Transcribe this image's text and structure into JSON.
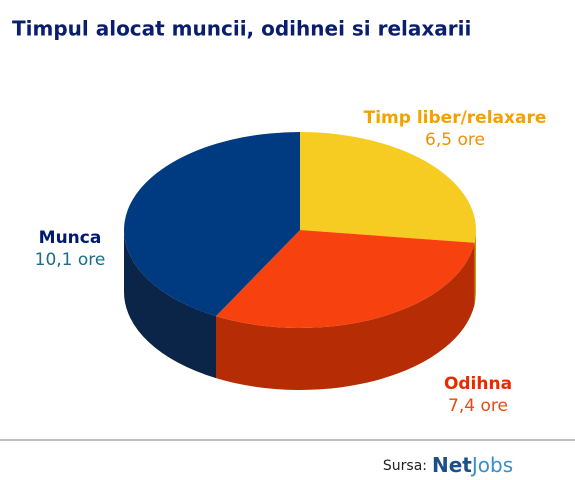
{
  "chart_data": {
    "type": "pie3d",
    "title": "Timpul alocat muncii, odihnei si relaxarii",
    "categories": [
      "Timp liber/relaxare",
      "Odihna",
      "Munca"
    ],
    "values": [
      6.5,
      7.4,
      10.1
    ],
    "value_labels": [
      "6,5 ore",
      "7,4 ore",
      "10,1 ore"
    ],
    "colors": [
      "#f7cc22",
      "#f7420f",
      "#003a80"
    ],
    "side_colors": [
      "#c89a10",
      "#b52c05",
      "#0a2548"
    ],
    "label_colors": [
      "#f5a100",
      "#e52c00",
      "#001a70"
    ],
    "value_label_colors": [
      "#f09000",
      "#e84a10",
      "#1b6d88"
    ],
    "source": "Sursa:",
    "logo": [
      "Net",
      "Jobs"
    ]
  }
}
